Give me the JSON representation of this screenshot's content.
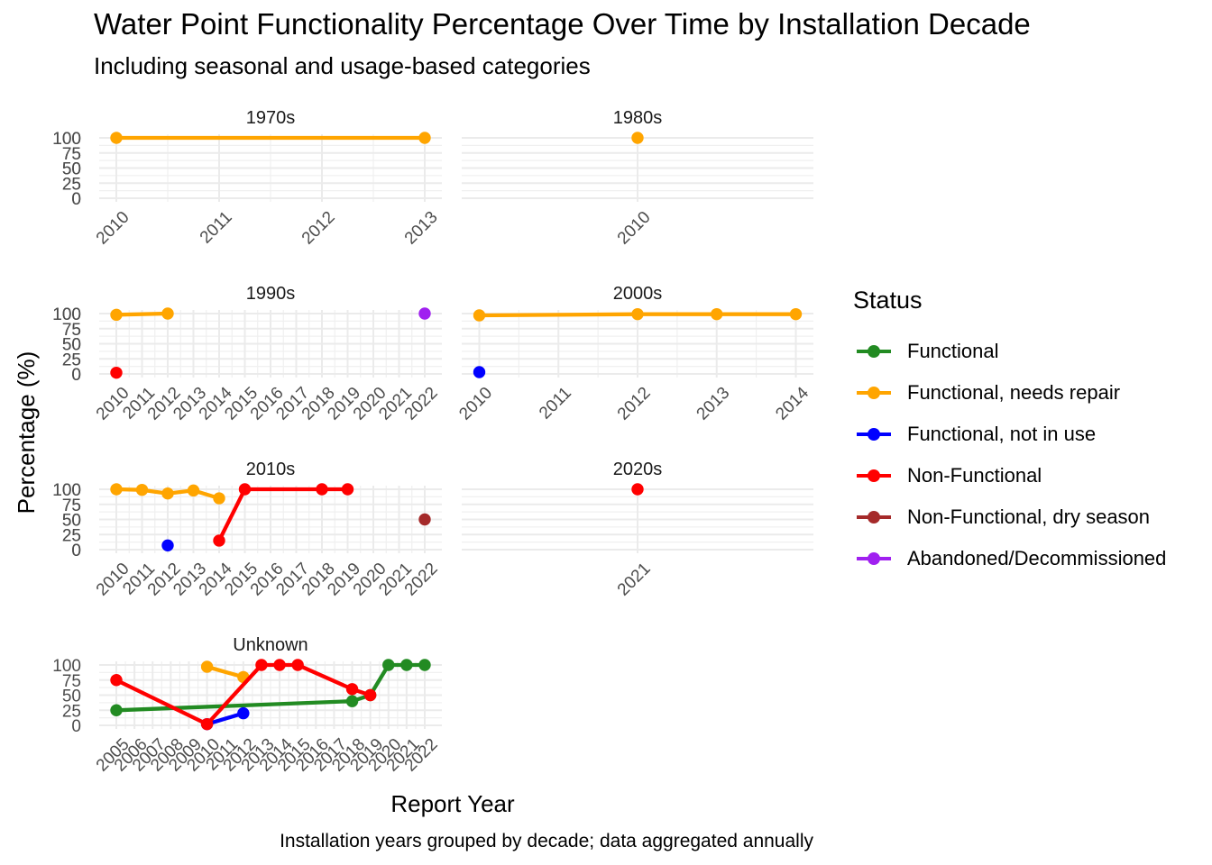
{
  "chart_data": {
    "type": "line",
    "title": "Water Point Functionality Percentage Over Time by Installation Decade",
    "subtitle": "Including seasonal and usage-based categories",
    "xlabel": "Report Year",
    "ylabel": "Percentage (%)",
    "caption": "Installation years grouped by decade; data aggregated annually",
    "y_ticks": [
      0,
      25,
      50,
      75,
      100
    ],
    "ylim": [
      0,
      100
    ],
    "grid": true,
    "legend": {
      "title": "Status",
      "position": "right",
      "entries": [
        {
          "name": "Functional",
          "color": "#228B22"
        },
        {
          "name": "Functional, needs repair",
          "color": "#FFA500"
        },
        {
          "name": "Functional, not in use",
          "color": "#0000FF"
        },
        {
          "name": "Non-Functional",
          "color": "#FF0000"
        },
        {
          "name": "Non-Functional, dry season",
          "color": "#A52A2A"
        },
        {
          "name": "Abandoned/Decommissioned",
          "color": "#A020F0"
        }
      ]
    },
    "panels": [
      {
        "label": "1970s",
        "x_ticks": [
          2010,
          2011,
          2012,
          2013
        ],
        "series": [
          {
            "name": "Functional, needs repair",
            "points": [
              [
                2010,
                100
              ],
              [
                2013,
                100
              ]
            ]
          }
        ]
      },
      {
        "label": "1980s",
        "x_ticks": [
          2010
        ],
        "series": [
          {
            "name": "Functional, needs repair",
            "points": [
              [
                2010,
                100
              ]
            ]
          }
        ]
      },
      {
        "label": "1990s",
        "x_ticks": [
          2010,
          2011,
          2012,
          2013,
          2014,
          2015,
          2016,
          2017,
          2018,
          2019,
          2020,
          2021,
          2022
        ],
        "series": [
          {
            "name": "Functional, needs repair",
            "points": [
              [
                2010,
                98
              ],
              [
                2012,
                100
              ]
            ]
          },
          {
            "name": "Non-Functional",
            "points": [
              [
                2010,
                2
              ]
            ]
          },
          {
            "name": "Abandoned/Decommissioned",
            "points": [
              [
                2022,
                100
              ]
            ]
          }
        ]
      },
      {
        "label": "2000s",
        "x_ticks": [
          2010,
          2011,
          2012,
          2013,
          2014
        ],
        "series": [
          {
            "name": "Functional, needs repair",
            "points": [
              [
                2010,
                97
              ],
              [
                2012,
                99
              ],
              [
                2013,
                99
              ],
              [
                2014,
                99
              ]
            ]
          },
          {
            "name": "Functional, not in use",
            "points": [
              [
                2010,
                3
              ]
            ]
          }
        ]
      },
      {
        "label": "2010s",
        "x_ticks": [
          2010,
          2011,
          2012,
          2013,
          2014,
          2015,
          2016,
          2017,
          2018,
          2019,
          2020,
          2021,
          2022
        ],
        "series": [
          {
            "name": "Functional, needs repair",
            "points": [
              [
                2010,
                100
              ],
              [
                2011,
                99
              ],
              [
                2012,
                93
              ],
              [
                2013,
                98
              ],
              [
                2014,
                85
              ]
            ]
          },
          {
            "name": "Functional, not in use",
            "points": [
              [
                2012,
                7
              ]
            ]
          },
          {
            "name": "Non-Functional",
            "points": [
              [
                2014,
                15
              ],
              [
                2015,
                100
              ],
              [
                2018,
                100
              ],
              [
                2019,
                100
              ]
            ]
          },
          {
            "name": "Non-Functional, dry season",
            "points": [
              [
                2022,
                50
              ]
            ]
          }
        ]
      },
      {
        "label": "2020s",
        "x_ticks": [
          2021
        ],
        "series": [
          {
            "name": "Non-Functional",
            "points": [
              [
                2021,
                100
              ]
            ]
          }
        ]
      },
      {
        "label": "Unknown",
        "x_ticks": [
          2005,
          2006,
          2007,
          2008,
          2009,
          2010,
          2011,
          2012,
          2013,
          2014,
          2015,
          2016,
          2017,
          2018,
          2019,
          2020,
          2021,
          2022
        ],
        "series": [
          {
            "name": "Functional",
            "points": [
              [
                2005,
                25
              ],
              [
                2018,
                40
              ],
              [
                2019,
                50
              ],
              [
                2020,
                100
              ],
              [
                2021,
                100
              ],
              [
                2022,
                100
              ]
            ]
          },
          {
            "name": "Functional, needs repair",
            "points": [
              [
                2010,
                97
              ],
              [
                2012,
                80
              ]
            ]
          },
          {
            "name": "Functional, not in use",
            "points": [
              [
                2010,
                2
              ],
              [
                2012,
                20
              ]
            ]
          },
          {
            "name": "Non-Functional",
            "points": [
              [
                2005,
                75
              ],
              [
                2010,
                2
              ],
              [
                2013,
                100
              ],
              [
                2014,
                100
              ],
              [
                2015,
                100
              ],
              [
                2018,
                60
              ],
              [
                2019,
                50
              ]
            ]
          }
        ]
      }
    ]
  }
}
